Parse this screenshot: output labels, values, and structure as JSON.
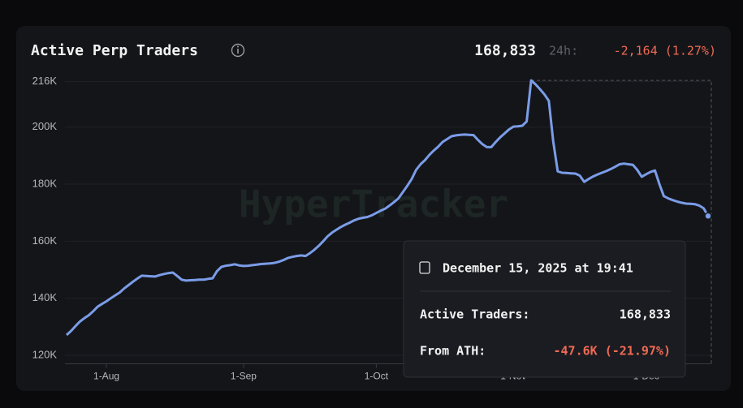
{
  "chart_data": {
    "type": "line",
    "title": "Active Perp Traders",
    "current_value": "168,833",
    "change_label": "24h:",
    "change": "-2,164 (1.27%)",
    "watermark": "HyperTracker",
    "categories": [
      null,
      null,
      null,
      null,
      null,
      null,
      null,
      null,
      null,
      "1-Aug",
      null,
      null,
      null,
      null,
      null,
      null,
      null,
      null,
      null,
      null,
      null,
      null,
      null,
      null,
      null,
      null,
      null,
      null,
      null,
      null,
      null,
      null,
      null,
      null,
      null,
      null,
      null,
      null,
      null,
      null,
      "1-Sep",
      null,
      null,
      null,
      null,
      null,
      null,
      null,
      null,
      null,
      null,
      null,
      null,
      null,
      null,
      null,
      null,
      null,
      null,
      null,
      null,
      null,
      null,
      null,
      null,
      null,
      null,
      null,
      null,
      null,
      "1-Oct",
      null,
      null,
      null,
      null,
      null,
      null,
      null,
      null,
      null,
      null,
      null,
      null,
      null,
      null,
      null,
      null,
      null,
      null,
      null,
      null,
      null,
      null,
      null,
      null,
      null,
      null,
      null,
      null,
      null,
      null,
      "1-Nov",
      null,
      null,
      null,
      null,
      null,
      null,
      null,
      null,
      null,
      null,
      null,
      null,
      null,
      null,
      null,
      null,
      null,
      null,
      null,
      null,
      null,
      null,
      null,
      null,
      null,
      null,
      null,
      null,
      null,
      "1-Dec",
      null,
      null,
      null,
      null,
      null,
      null,
      null,
      null,
      null,
      null,
      null,
      null,
      null,
      null
    ],
    "series": [
      {
        "name": "Active Traders",
        "color": "#7b9de8",
        "values": [
          127100,
          128500,
          130200,
          131800,
          133000,
          134000,
          135400,
          137000,
          138000,
          138900,
          140000,
          141000,
          142000,
          143400,
          144600,
          145800,
          146900,
          147900,
          147800,
          147700,
          147600,
          148100,
          148500,
          148800,
          149000,
          147800,
          146500,
          146200,
          146300,
          146400,
          146500,
          146500,
          146800,
          147000,
          149500,
          151000,
          151400,
          151600,
          151900,
          151500,
          151300,
          151400,
          151600,
          151800,
          152000,
          152100,
          152200,
          152400,
          152800,
          153400,
          154100,
          154500,
          154800,
          155000,
          154800,
          155800,
          157000,
          158400,
          160000,
          161700,
          163000,
          164000,
          165000,
          165800,
          166500,
          167300,
          167900,
          168200,
          168500,
          169100,
          169900,
          170700,
          171400,
          172500,
          173700,
          175000,
          177200,
          179400,
          181800,
          185000,
          187000,
          188400,
          190300,
          191800,
          193200,
          194800,
          195800,
          196800,
          197100,
          197300,
          197400,
          197300,
          197200,
          195500,
          194000,
          193000,
          193000,
          194800,
          196400,
          197800,
          199200,
          200200,
          200300,
          200500,
          202000,
          216400,
          215000,
          213300,
          211500,
          209200,
          195000,
          184500,
          184000,
          183900,
          183800,
          183700,
          183000,
          180800,
          181800,
          182700,
          183400,
          184000,
          184600,
          185300,
          186100,
          187000,
          187200,
          187000,
          186800,
          185000,
          182600,
          183500,
          184300,
          184800,
          180000,
          175800,
          175000,
          174400,
          173900,
          173500,
          173200,
          173100,
          173000,
          172500,
          171500,
          168833
        ]
      }
    ],
    "ylim": [
      117000,
      217000
    ],
    "yticks": [
      {
        "value": 120000,
        "label": "120K"
      },
      {
        "value": 140000,
        "label": "140K"
      },
      {
        "value": 160000,
        "label": "160K"
      },
      {
        "value": 180000,
        "label": "180K"
      },
      {
        "value": 200000,
        "label": "200K"
      },
      {
        "value": 216000,
        "label": "216K"
      }
    ],
    "grid": true,
    "tooltip": {
      "title": "December 15, 2025 at 19:41",
      "rows": [
        {
          "label": "Active Traders:",
          "value": "168,833"
        },
        {
          "label": "From ATH:",
          "value": "-47.6K (-21.97%)"
        }
      ]
    }
  }
}
